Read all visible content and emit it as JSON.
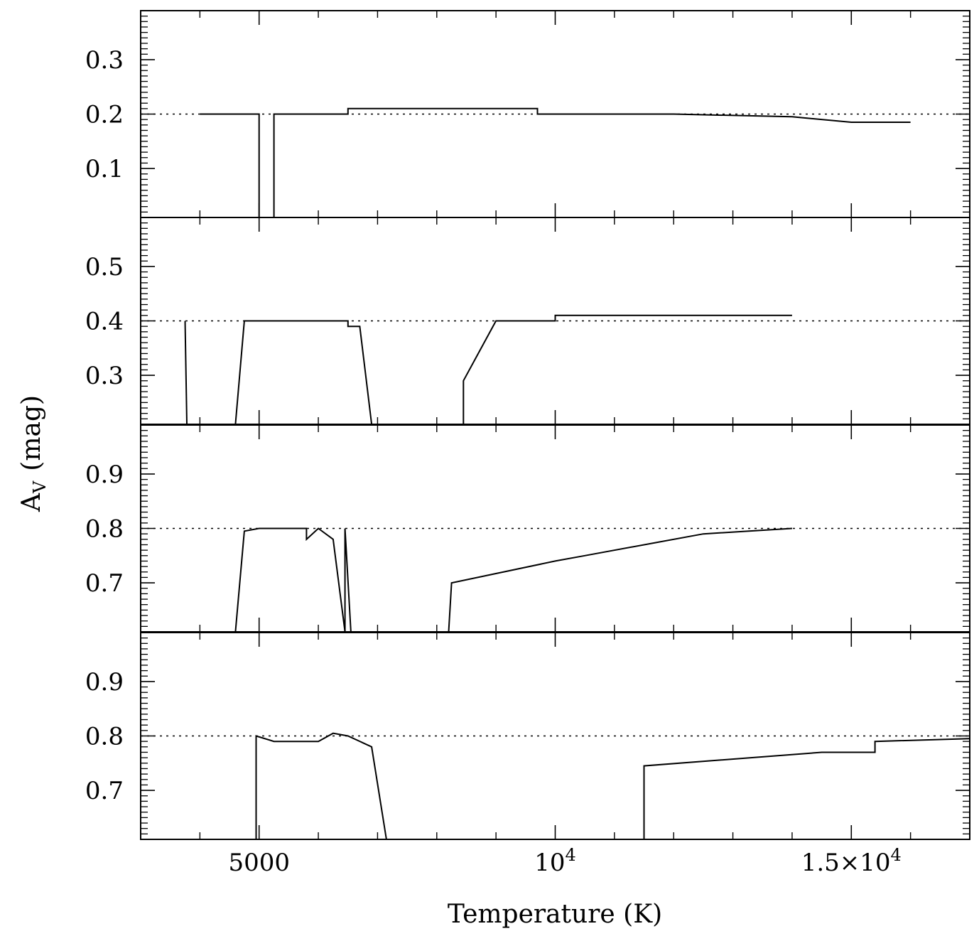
{
  "chart_data": {
    "type": "line",
    "layout": "stacked-panels",
    "xlabel": "Temperature (K)",
    "ylabel": "A_V (mag)",
    "ylabel_main": "A",
    "ylabel_sub": "V",
    "ylabel_unit": "(mag)",
    "xlim": [
      3000,
      17000
    ],
    "x_ticks": [
      {
        "value": 5000,
        "label": "5000",
        "sup": ""
      },
      {
        "value": 10000,
        "label": "10",
        "sup": "4"
      },
      {
        "value": 15000,
        "label": "1.5×10",
        "sup": "4"
      }
    ],
    "grid": false,
    "legend": "none",
    "line_color": "#000000",
    "panels": [
      {
        "ylim": [
          0.01,
          0.39
        ],
        "yticks": [
          "0.1",
          "0.2",
          "0.3"
        ],
        "reference_value": 0.2,
        "series": [
          {
            "x": [
              4000,
              5000,
              5000
            ],
            "y": [
              0.2,
              0.2,
              0.01
            ]
          },
          {
            "x": [
              5250,
              5250,
              6500,
              6500,
              9700,
              9700,
              12000,
              14000,
              15000,
              16000
            ],
            "y": [
              0.01,
              0.2,
              0.2,
              0.21,
              0.21,
              0.2,
              0.2,
              0.195,
              0.185,
              0.185
            ]
          }
        ]
      },
      {
        "ylim": [
          0.21,
          0.59
        ],
        "yticks": [
          "0.3",
          "0.4",
          "0.5"
        ],
        "reference_value": 0.4,
        "series": [
          {
            "x": [
              3750,
              3780
            ],
            "y": [
              0.4,
              0.21
            ]
          },
          {
            "x": [
              4600,
              4750,
              6500,
              6500,
              6700,
              6900
            ],
            "y": [
              0.21,
              0.4,
              0.4,
              0.39,
              0.39,
              0.21
            ]
          },
          {
            "x": [
              8450,
              8450,
              9000,
              10000,
              10000,
              14000
            ],
            "y": [
              0.21,
              0.29,
              0.4,
              0.4,
              0.41,
              0.41
            ]
          }
        ]
      },
      {
        "ylim": [
          0.61,
          0.99
        ],
        "yticks": [
          "0.7",
          "0.8",
          "0.9"
        ],
        "reference_value": 0.8,
        "series": [
          {
            "x": [
              4600,
              4750,
              5000,
              5800,
              5800,
              6000,
              6250,
              6450,
              6450,
              6550
            ],
            "y": [
              0.61,
              0.795,
              0.8,
              0.8,
              0.78,
              0.8,
              0.78,
              0.61,
              0.8,
              0.61
            ]
          },
          {
            "x": [
              8200,
              8250,
              10000,
              10500,
              12500,
              14000
            ],
            "y": [
              0.61,
              0.7,
              0.74,
              0.75,
              0.79,
              0.8
            ]
          }
        ]
      },
      {
        "ylim": [
          0.61,
          0.99
        ],
        "yticks": [
          "0.7",
          "0.8",
          "0.9"
        ],
        "reference_value": 0.8,
        "series": [
          {
            "x": [
              4950,
              4950,
              5250,
              6000,
              6250,
              6500,
              6900,
              7150
            ],
            "y": [
              0.61,
              0.8,
              0.79,
              0.79,
              0.805,
              0.8,
              0.78,
              0.61
            ]
          },
          {
            "x": [
              11500,
              11500,
              14500,
              15400,
              15400,
              17000
            ],
            "y": [
              0.61,
              0.745,
              0.77,
              0.77,
              0.79,
              0.795
            ]
          }
        ]
      }
    ]
  }
}
